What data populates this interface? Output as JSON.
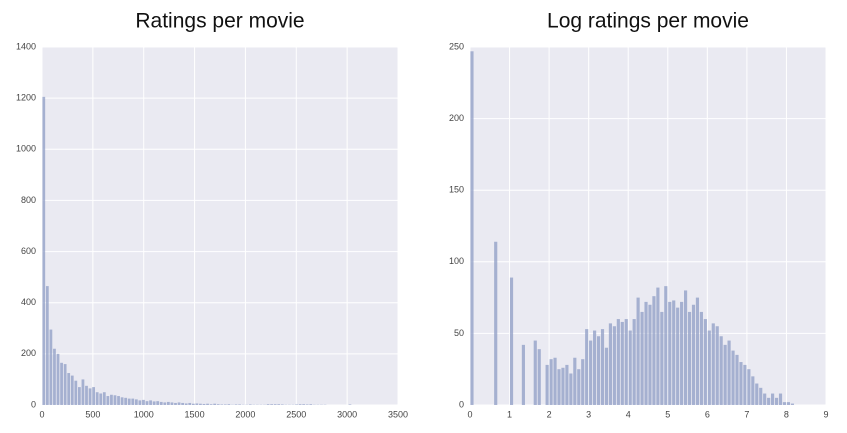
{
  "chart_data": [
    {
      "type": "histogram",
      "title": "Ratings per movie",
      "color": "#8e9cc4",
      "grid": true,
      "bins": [
        0,
        35,
        70,
        105,
        140,
        175,
        210,
        245,
        280,
        315,
        350,
        385,
        420,
        455,
        490,
        525,
        560,
        595,
        630,
        665,
        700,
        735,
        770,
        805,
        840,
        875,
        910,
        945,
        980,
        1015,
        1050,
        1085,
        1120,
        1155,
        1190,
        1225,
        1260,
        1295,
        1330,
        1365,
        1400,
        1435,
        1470,
        1505,
        1540,
        1575,
        1610,
        1645,
        1680,
        1715,
        1750,
        1785,
        1820,
        1855,
        1890,
        1925,
        1960,
        1995,
        2030,
        2065,
        2100,
        2135,
        2170,
        2205,
        2240,
        2275,
        2310,
        2345,
        2380,
        2415,
        2450,
        2485,
        2520,
        2555,
        2590,
        2625,
        2660,
        2695,
        2730,
        2765,
        2800,
        2835,
        2870,
        2905,
        2940,
        2975,
        3010,
        3045,
        3080,
        3115,
        3150,
        3185,
        3220,
        3255,
        3290,
        3325,
        3360,
        3395,
        3430,
        3465,
        3500
      ],
      "values": [
        1205,
        465,
        295,
        220,
        200,
        165,
        160,
        125,
        115,
        95,
        70,
        100,
        75,
        65,
        70,
        50,
        45,
        50,
        35,
        40,
        38,
        35,
        30,
        28,
        25,
        25,
        22,
        18,
        20,
        15,
        18,
        14,
        15,
        12,
        10,
        12,
        10,
        8,
        10,
        8,
        6,
        8,
        5,
        6,
        5,
        4,
        5,
        3,
        5,
        3,
        2,
        2,
        3,
        1,
        2,
        2,
        1,
        1,
        2,
        1,
        1,
        1,
        1,
        3,
        3,
        3,
        3,
        2,
        1,
        1,
        1,
        2,
        3,
        3,
        2,
        3,
        1,
        1,
        1,
        1,
        0,
        0,
        0,
        0,
        0,
        0,
        2,
        0,
        0,
        0,
        0,
        0,
        0,
        0,
        0,
        0,
        0,
        0,
        0,
        0
      ],
      "xlim": [
        0,
        3500
      ],
      "xticks": [
        0,
        500,
        1000,
        1500,
        2000,
        2500,
        3000,
        3500
      ],
      "ylim": [
        0,
        1400
      ],
      "yticks": [
        0,
        200,
        400,
        600,
        800,
        1000,
        1200,
        1400
      ]
    },
    {
      "type": "histogram",
      "title": "Log ratings per movie",
      "color": "#8e9cc4",
      "grid": true,
      "bins": [
        0,
        0.1,
        0.2,
        0.3,
        0.4,
        0.5,
        0.6,
        0.7,
        0.8,
        0.9,
        1.0,
        1.1,
        1.2,
        1.3,
        1.4,
        1.5,
        1.6,
        1.7,
        1.8,
        1.9,
        2.0,
        2.1,
        2.2,
        2.3,
        2.4,
        2.5,
        2.6,
        2.7,
        2.8,
        2.9,
        3.0,
        3.1,
        3.2,
        3.3,
        3.4,
        3.5,
        3.6,
        3.7,
        3.8,
        3.9,
        4.0,
        4.1,
        4.2,
        4.3,
        4.4,
        4.5,
        4.6,
        4.7,
        4.8,
        4.9,
        5.0,
        5.1,
        5.2,
        5.3,
        5.4,
        5.5,
        5.6,
        5.7,
        5.8,
        5.9,
        6.0,
        6.1,
        6.2,
        6.3,
        6.4,
        6.5,
        6.6,
        6.7,
        6.8,
        6.9,
        7.0,
        7.1,
        7.2,
        7.3,
        7.4,
        7.5,
        7.6,
        7.7,
        7.8,
        7.9,
        8.0,
        8.1,
        8.2
      ],
      "values": [
        247,
        0,
        0,
        0,
        0,
        0,
        114,
        0,
        0,
        0,
        89,
        0,
        0,
        42,
        0,
        0,
        45,
        39,
        0,
        28,
        32,
        33,
        25,
        26,
        28,
        22,
        33,
        25,
        32,
        53,
        45,
        52,
        48,
        53,
        40,
        57,
        55,
        60,
        58,
        60,
        52,
        60,
        75,
        65,
        72,
        70,
        76,
        82,
        65,
        83,
        72,
        73,
        68,
        72,
        80,
        65,
        70,
        75,
        65,
        60,
        52,
        57,
        55,
        48,
        42,
        45,
        38,
        35,
        30,
        28,
        25,
        20,
        15,
        12,
        8,
        5,
        8,
        5,
        8,
        2,
        2,
        1
      ],
      "xlim": [
        0,
        9
      ],
      "xticks": [
        0,
        1,
        2,
        3,
        4,
        5,
        6,
        7,
        8,
        9
      ],
      "ylim": [
        0,
        250
      ],
      "yticks": [
        0,
        50,
        100,
        150,
        200,
        250
      ]
    }
  ]
}
